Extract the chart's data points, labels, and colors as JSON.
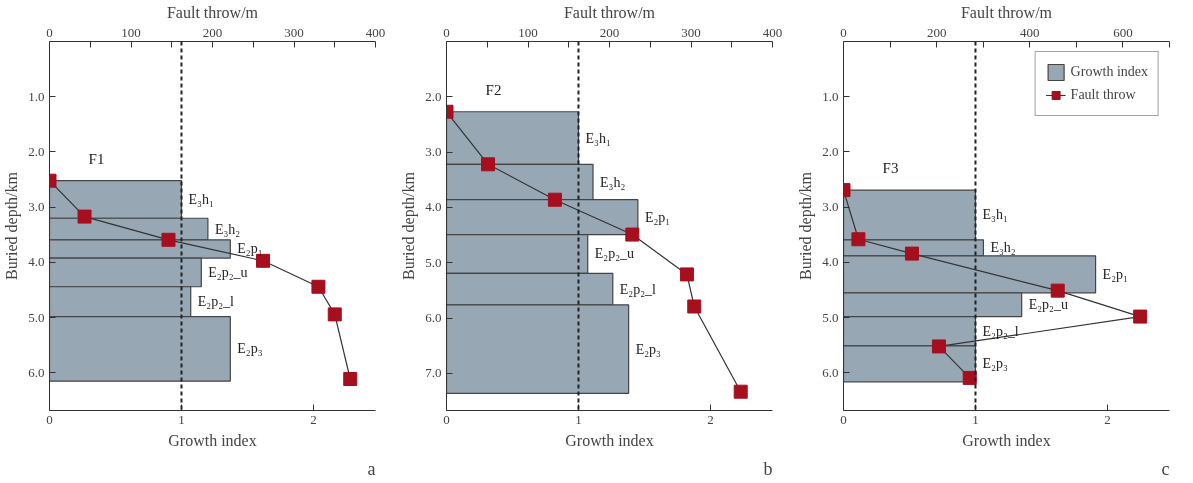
{
  "chart_data": [
    {
      "type": "histogram",
      "orientation": "horizontal",
      "title": "F1",
      "xlabel": "Growth index",
      "x2label": "Fault throw/m",
      "ylabel": "Buried depth/km",
      "grid": false,
      "legend": false,
      "marker": "square",
      "xlim": [
        0,
        2.47
      ],
      "xticks": [
        0,
        1,
        2
      ],
      "x2lim": [
        0,
        400
      ],
      "x2ticks": [
        0,
        {
          "value": 50,
          "label": null
        },
        100,
        {
          "value": 150,
          "label": null
        },
        200,
        {
          "value": 250,
          "label": null
        },
        300,
        {
          "value": 350,
          "label": null
        },
        400
      ],
      "ylim": [
        6.68,
        0
      ],
      "yticks": [
        {
          "value": 1,
          "label": "1.0"
        },
        {
          "value": 2,
          "label": "2.0"
        },
        {
          "value": 3,
          "label": "3.0"
        },
        {
          "value": 4,
          "label": "4.0"
        },
        {
          "value": 5,
          "label": "5.0"
        },
        {
          "value": 6,
          "label": "6.0"
        }
      ],
      "categories": [
        "E₃h₁",
        "E₃h₂",
        "E₂p₁",
        "E₂p₂_u",
        "E₂p₂_l",
        "E₂p₃"
      ],
      "bins": [
        2.52,
        3.2,
        3.59,
        3.92,
        4.44,
        4.98,
        6.15
      ],
      "series": [
        {
          "color": "#97a8b4",
          "values": [
            1.0,
            1.2,
            1.37,
            1.15,
            1.07,
            1.37
          ]
        },
        {
          "type": "line",
          "axis": "x2",
          "color": "#a50f1e",
          "x": [
            2.52,
            3.17,
            3.59,
            3.97,
            4.44,
            4.94,
            6.11
          ],
          "values": [
            0,
            43,
            146,
            262,
            330,
            350,
            369
          ]
        }
      ],
      "ref_lines": [
        {
          "axis": "x",
          "value": 1,
          "line_style": "dashed",
          "color": "#222222"
        }
      ],
      "annotations": [
        "a"
      ]
    },
    {
      "type": "histogram",
      "orientation": "horizontal",
      "title": "F2",
      "xlabel": "Growth index",
      "x2label": "Fault throw/m",
      "ylabel": "Buried depth/km",
      "grid": false,
      "legend": false,
      "marker": "square",
      "xlim": [
        0,
        2.47
      ],
      "xticks": [
        0,
        1,
        2
      ],
      "x2lim": [
        0,
        400
      ],
      "x2ticks": [
        0,
        {
          "value": 50,
          "label": null
        },
        100,
        {
          "value": 150,
          "label": null
        },
        200,
        {
          "value": 250,
          "label": null
        },
        300,
        {
          "value": 350,
          "label": null
        },
        400
      ],
      "ylim": [
        7.67,
        1.0
      ],
      "yticks": [
        {
          "value": 2,
          "label": "2.0"
        },
        {
          "value": 3,
          "label": "3.0"
        },
        {
          "value": 4,
          "label": "4.0"
        },
        {
          "value": 5,
          "label": "5.0"
        },
        {
          "value": 6,
          "label": "6.0"
        },
        {
          "value": 7,
          "label": "7.0"
        }
      ],
      "categories": [
        "E₃h₁",
        "E₃h₂",
        "E₂p₁",
        "E₂p₂_u",
        "E₂p₂_l",
        "E₂p₃"
      ],
      "bins": [
        2.27,
        3.22,
        3.86,
        4.49,
        5.19,
        5.76,
        7.36
      ],
      "series": [
        {
          "color": "#97a8b4",
          "values": [
            1.0,
            1.11,
            1.45,
            1.07,
            1.26,
            1.38
          ]
        },
        {
          "type": "line",
          "axis": "x2",
          "color": "#a50f1e",
          "x": [
            2.27,
            3.22,
            3.86,
            4.49,
            5.21,
            5.79,
            7.33
          ],
          "values": [
            0,
            51,
            133,
            228,
            295,
            304,
            361
          ]
        }
      ],
      "ref_lines": [
        {
          "axis": "x",
          "value": 1,
          "line_style": "dashed",
          "color": "#222222"
        }
      ],
      "annotations": [
        "b"
      ]
    },
    {
      "type": "histogram",
      "orientation": "horizontal",
      "title": "F3",
      "xlabel": "Growth index",
      "x2label": "Fault throw/m",
      "ylabel": "Buried depth/km",
      "grid": false,
      "legend": "top right",
      "marker": "square",
      "xlim": [
        0,
        2.47
      ],
      "xticks": [
        0,
        1,
        2
      ],
      "x2lim": [
        0,
        700
      ],
      "x2ticks": [
        0,
        {
          "value": 100,
          "label": null
        },
        200,
        {
          "value": 300,
          "label": null
        },
        400,
        {
          "value": 500,
          "label": null
        },
        600,
        {
          "value": 700,
          "label": null
        }
      ],
      "ylim": [
        6.68,
        0
      ],
      "yticks": [
        {
          "value": 1,
          "label": "1.0"
        },
        {
          "value": 2,
          "label": "2.0"
        },
        {
          "value": 3,
          "label": "3.0"
        },
        {
          "value": 4,
          "label": "4.0"
        },
        {
          "value": 5,
          "label": "5.0"
        },
        {
          "value": 6,
          "label": "6.0"
        }
      ],
      "categories": [
        "E₃h₁",
        "E₃h₂",
        "E₂p₁",
        "E₂p₂_u",
        "E₂p₂_l",
        "E₂p₃"
      ],
      "bins": [
        2.69,
        3.59,
        3.88,
        4.55,
        4.98,
        5.51,
        6.16
      ],
      "series": [
        {
          "name": "Growth index",
          "color": "#97a8b4",
          "values": [
            1.0,
            1.06,
            1.91,
            1.35,
            1.0,
            1.0
          ]
        },
        {
          "type": "line",
          "axis": "x2",
          "name": "Fault throw",
          "color": "#a50f1e",
          "x": [
            2.69,
            3.58,
            3.84,
            4.51,
            4.98,
            5.52,
            6.09
          ],
          "values": [
            0,
            32,
            147,
            460,
            637,
            205,
            271
          ]
        }
      ],
      "ref_lines": [
        {
          "axis": "x",
          "value": 1,
          "line_style": "dashed",
          "color": "#222222"
        }
      ],
      "annotations": [
        "c"
      ]
    }
  ]
}
